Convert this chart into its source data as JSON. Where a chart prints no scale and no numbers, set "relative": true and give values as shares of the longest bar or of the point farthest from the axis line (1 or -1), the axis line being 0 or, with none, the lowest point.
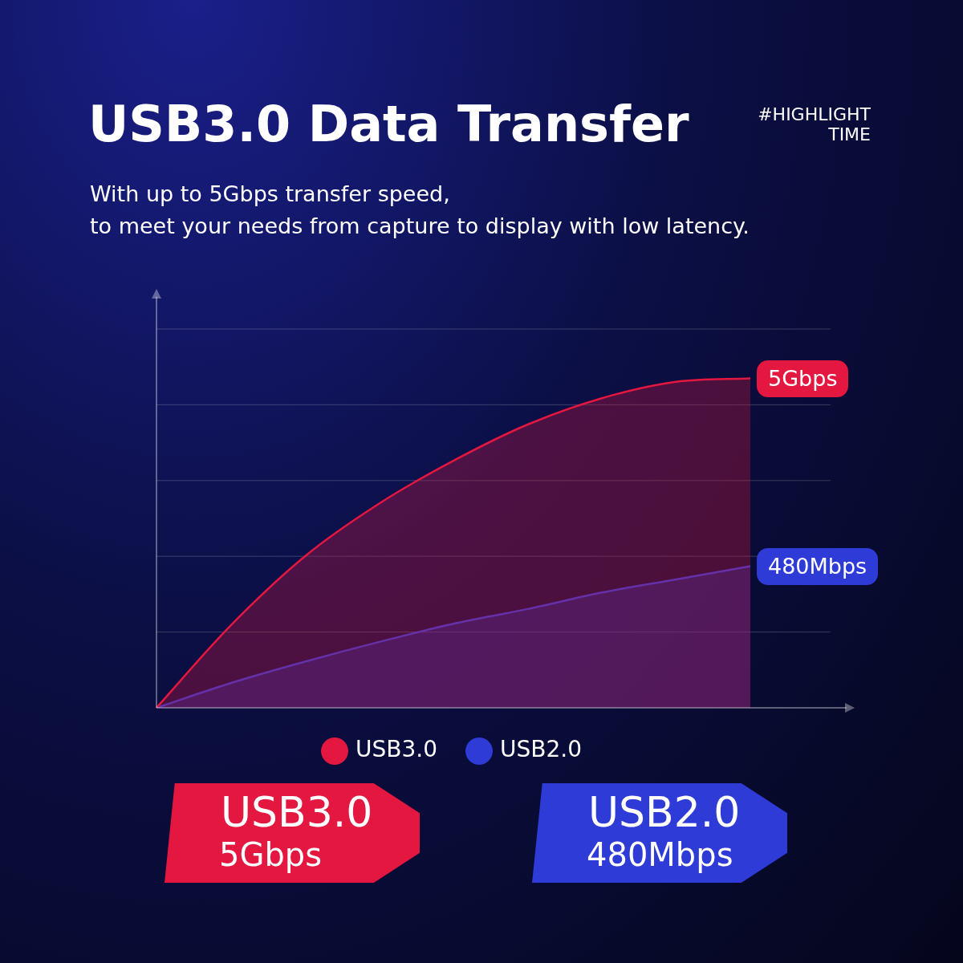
{
  "chart_data": {
    "type": "area",
    "title": "USB3.0 Data Transfer",
    "subtitle": "With up to 5Gbps transfer speed,\nto meet your needs from capture to display with low latency.",
    "annotations": [
      "#HIGHLIGHT\nTIME",
      "5Gbps",
      "480Mbps",
      "USB3.0\n5Gbps",
      "USB2.0\n480Mbps"
    ],
    "categories": [
      null,
      null,
      null,
      null,
      null,
      null,
      null,
      null,
      null
    ],
    "relative": true,
    "grid": "y",
    "legend": "bottom",
    "marker": "none",
    "series": [
      {
        "name": "USB3.0",
        "color": "#e3173f",
        "values": [
          0,
          0.25,
          0.46,
          0.62,
          0.75,
          0.86,
          0.94,
          0.99,
          1
        ]
      },
      {
        "name": "USB2.0",
        "color": "#2f3bd6",
        "values": [
          0,
          0.075,
          0.14,
          0.2,
          0.255,
          0.3,
          0.35,
          0.39,
          0.43
        ]
      }
    ]
  }
}
